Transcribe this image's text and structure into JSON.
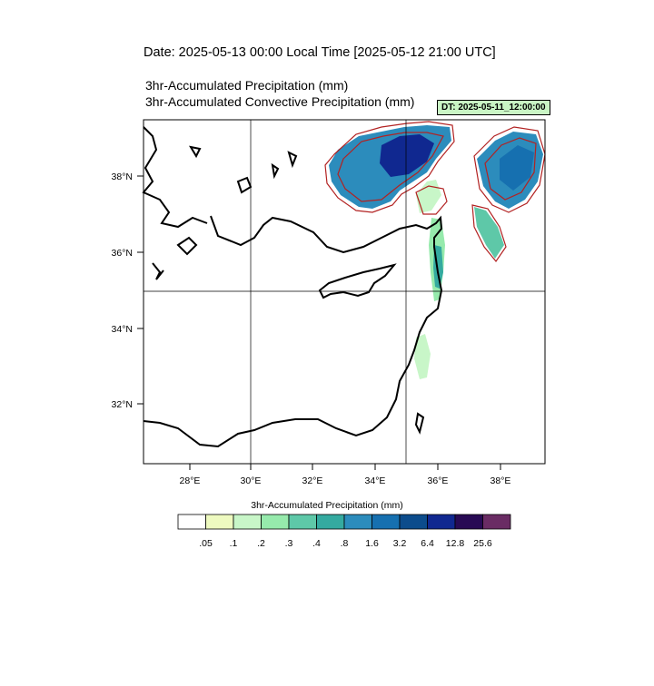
{
  "header": {
    "date_line": "Date: 2025-05-13  00:00 Local Time [2025-05-12  21:00 UTC]",
    "subtitle_1": "3hr-Accumulated Precipitation   (mm)",
    "subtitle_2": "3hr-Accumulated Convective Precipitation   (mm)",
    "dt_label": "DT: 2025-05-11_12:00:00"
  },
  "map": {
    "lon_ticks": [
      "28°E",
      "30°E",
      "32°E",
      "34°E",
      "36°E",
      "38°E"
    ],
    "lat_ticks": [
      "38°N",
      "36°N",
      "34°N",
      "32°N"
    ],
    "colors": {
      "coast": "#000000",
      "grid": "#000000",
      "convective_contour": "#b22222"
    }
  },
  "legend": {
    "title": "3hr-Accumulated Precipitation  (mm)",
    "colors": [
      "#ffffff",
      "#eefac0",
      "#c8f6c8",
      "#96eaac",
      "#5ec8a8",
      "#34aaa0",
      "#2c8cbc",
      "#1670b0",
      "#0c4c8c",
      "#102890",
      "#280a54",
      "#6a2c64"
    ],
    "labels": [
      ".05",
      ".1",
      ".2",
      ".3",
      ".4",
      ".8",
      "1.6",
      "3.2",
      "6.4",
      "12.8",
      "25.6"
    ]
  }
}
